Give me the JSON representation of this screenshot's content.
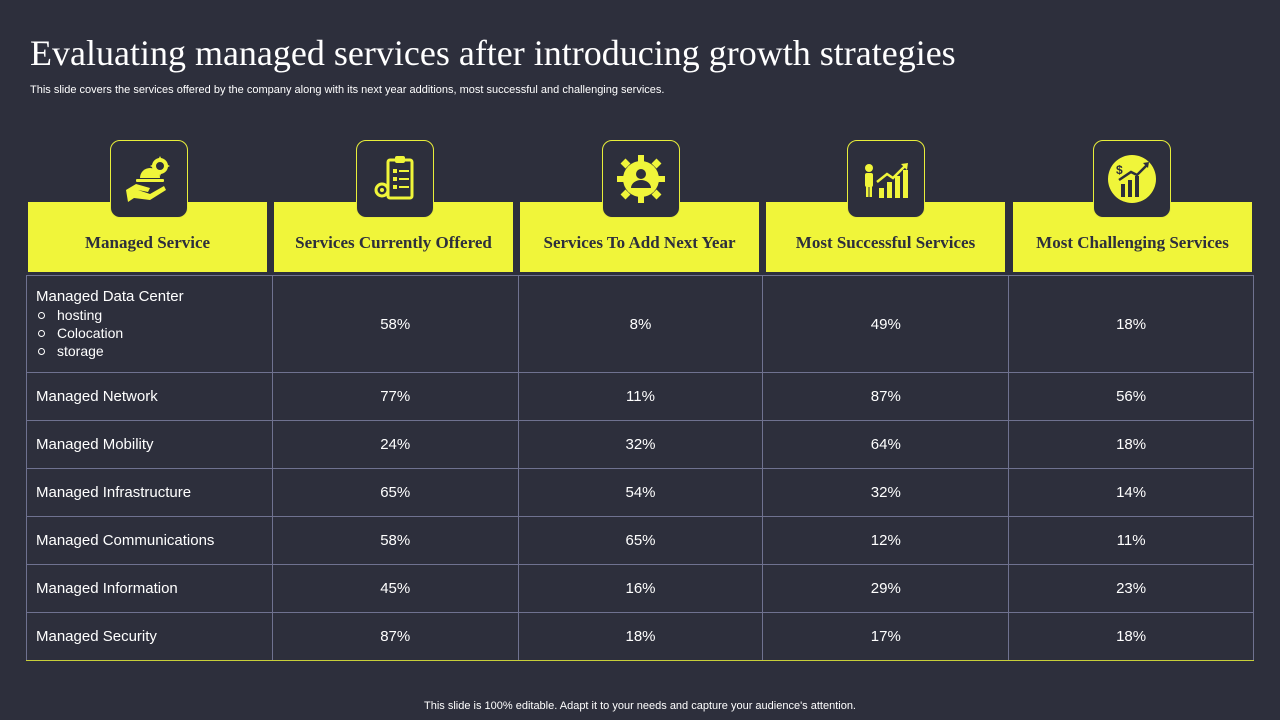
{
  "title": "Evaluating managed services after introducing growth strategies",
  "subtitle": "This slide covers the services offered by the company along with its next year additions, most successful and challenging services.",
  "columns": [
    {
      "label": "Managed Service",
      "icon": "hand-gear-icon"
    },
    {
      "label": "Services Currently Offered",
      "icon": "clipboard-gear-icon"
    },
    {
      "label": "Services To Add Next Year",
      "icon": "gear-person-icon"
    },
    {
      "label": "Most Successful Services",
      "icon": "person-growth-chart-icon"
    },
    {
      "label": "Most Challenging Services",
      "icon": "dollar-growth-icon"
    }
  ],
  "rows": [
    {
      "name": "Managed Data Center",
      "sub": [
        "hosting",
        "Colocation",
        "storage"
      ],
      "values": [
        "58%",
        "8%",
        "49%",
        "18%"
      ]
    },
    {
      "name": "Managed Network",
      "values": [
        "77%",
        "11%",
        "87%",
        "56%"
      ]
    },
    {
      "name": "Managed Mobility",
      "values": [
        "24%",
        "32%",
        "64%",
        "18%"
      ]
    },
    {
      "name": "Managed Infrastructure",
      "values": [
        "65%",
        "54%",
        "32%",
        "14%"
      ]
    },
    {
      "name": "Managed Communications",
      "values": [
        "58%",
        "65%",
        "12%",
        "11%"
      ]
    },
    {
      "name": "Managed Information",
      "values": [
        "45%",
        "16%",
        "29%",
        "23%"
      ]
    },
    {
      "name": "Managed Security",
      "values": [
        "87%",
        "18%",
        "17%",
        "18%"
      ]
    }
  ],
  "footer": "This slide is 100% editable. Adapt it to your needs and capture your audience's attention.",
  "colors": {
    "accent": "#f0f53a",
    "background": "#2d2f3c",
    "border": "#6f7290"
  }
}
